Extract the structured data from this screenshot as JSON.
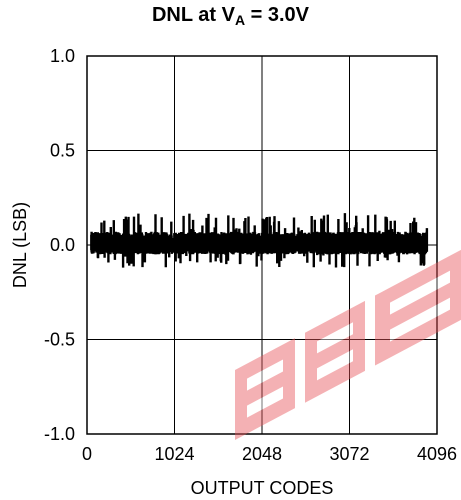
{
  "chart_data": {
    "type": "line",
    "title_parts": {
      "prefix": "DNL at V",
      "subscript": "A",
      "suffix": " = 3.0V"
    },
    "xlabel": "OUTPUT CODES",
    "ylabel": "DNL (LSB)",
    "xlim": [
      0,
      4096
    ],
    "ylim": [
      -1.0,
      1.0
    ],
    "x_ticks": [
      0,
      1024,
      2048,
      3072,
      4096
    ],
    "x_tick_labels": [
      "0",
      "1024",
      "2048",
      "3072",
      "4096"
    ],
    "y_ticks": [
      1.0,
      0.5,
      0.0,
      -0.5,
      -1.0
    ],
    "y_tick_labels": [
      "1.0",
      "0.5",
      "0.0",
      "-0.5",
      "-1.0"
    ],
    "grid": true,
    "series": [
      {
        "color": "#000000",
        "x_range": [
          50,
          3980
        ],
        "typical_band": [
          -0.05,
          0.07
        ],
        "max_value": 0.17,
        "min_value": -0.12
      }
    ]
  },
  "watermark": {
    "color": "#e8555a",
    "opacity": 0.45
  }
}
